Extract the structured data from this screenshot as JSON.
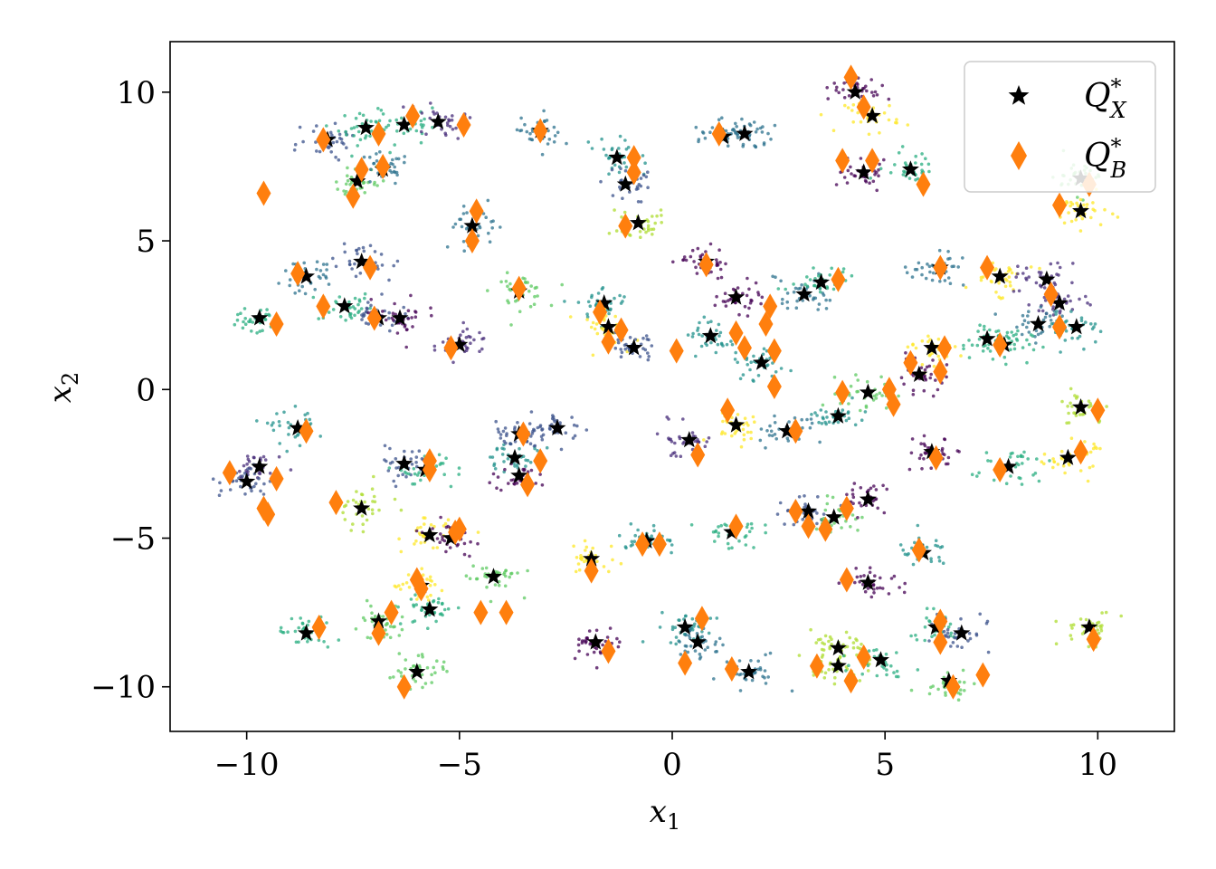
{
  "chart_data": {
    "type": "scatter",
    "title": "",
    "xlabel": "x",
    "xlabel_sub": "1",
    "ylabel": "x",
    "ylabel_sub": "2",
    "xlim": [
      -11.8,
      11.8
    ],
    "ylim": [
      -11.5,
      11.7
    ],
    "xticks": [
      -10,
      -5,
      0,
      5,
      10
    ],
    "yticks": [
      -10,
      -5,
      0,
      5,
      10
    ],
    "xtick_labels": [
      "−10",
      "−5",
      "0",
      "5",
      "10"
    ],
    "ytick_labels": [
      "−10",
      "−5",
      "0",
      "5",
      "10"
    ],
    "grid": false,
    "legend_position": "top-right",
    "colors": {
      "qx": "#000000",
      "qb": "#ff7f0e"
    },
    "series": [
      {
        "name": "Q*_X",
        "label_main": "Q",
        "label_sup": "*",
        "label_sub": "X",
        "marker": "star",
        "points": [
          [
            -9.7,
            2.4
          ],
          [
            -8.6,
            3.8
          ],
          [
            -7.3,
            4.3
          ],
          [
            -7.7,
            2.8
          ],
          [
            -6.9,
            2.4
          ],
          [
            -6.4,
            2.4
          ],
          [
            -8.1,
            8.4
          ],
          [
            -7.2,
            8.8
          ],
          [
            -6.3,
            8.9
          ],
          [
            -5.5,
            9.0
          ],
          [
            -7.4,
            7.0
          ],
          [
            -6.8,
            7.4
          ],
          [
            -4.7,
            5.5
          ],
          [
            -3.1,
            8.7
          ],
          [
            -5.0,
            1.5
          ],
          [
            -3.6,
            3.3
          ],
          [
            -1.3,
            7.8
          ],
          [
            -1.1,
            6.9
          ],
          [
            -0.8,
            5.6
          ],
          [
            -1.6,
            2.9
          ],
          [
            -1.5,
            2.1
          ],
          [
            -0.9,
            1.4
          ],
          [
            1.2,
            8.5
          ],
          [
            1.7,
            8.6
          ],
          [
            0.8,
            4.3
          ],
          [
            1.5,
            3.1
          ],
          [
            0.9,
            1.8
          ],
          [
            2.1,
            0.9
          ],
          [
            3.1,
            3.2
          ],
          [
            3.5,
            3.6
          ],
          [
            4.3,
            10.0
          ],
          [
            4.7,
            9.2
          ],
          [
            4.5,
            7.3
          ],
          [
            5.6,
            7.4
          ],
          [
            9.6,
            7.1
          ],
          [
            9.6,
            6.0
          ],
          [
            6.3,
            4.1
          ],
          [
            7.7,
            3.8
          ],
          [
            8.8,
            3.7
          ],
          [
            9.1,
            2.9
          ],
          [
            8.6,
            2.2
          ],
          [
            9.5,
            2.1
          ],
          [
            7.4,
            1.7
          ],
          [
            7.8,
            1.5
          ],
          [
            6.1,
            1.4
          ],
          [
            5.8,
            0.5
          ],
          [
            3.9,
            -0.9
          ],
          [
            4.6,
            -0.1
          ],
          [
            2.7,
            -1.4
          ],
          [
            1.5,
            -1.2
          ],
          [
            0.4,
            -1.7
          ],
          [
            -2.7,
            -1.3
          ],
          [
            -3.7,
            -2.3
          ],
          [
            -3.6,
            -2.9
          ],
          [
            -3.6,
            -1.5
          ],
          [
            -6.3,
            -2.5
          ],
          [
            -5.8,
            -2.7
          ],
          [
            -8.8,
            -1.3
          ],
          [
            -9.7,
            -2.6
          ],
          [
            -10.0,
            -3.1
          ],
          [
            -7.3,
            -4.0
          ],
          [
            -5.7,
            -4.9
          ],
          [
            -5.2,
            -5.0
          ],
          [
            -4.2,
            -6.3
          ],
          [
            -5.9,
            -6.6
          ],
          [
            -5.7,
            -7.4
          ],
          [
            -6.9,
            -7.8
          ],
          [
            -8.6,
            -8.2
          ],
          [
            -6.0,
            -9.5
          ],
          [
            -1.9,
            -5.7
          ],
          [
            -0.6,
            -5.1
          ],
          [
            -1.8,
            -8.5
          ],
          [
            0.3,
            -8.0
          ],
          [
            0.6,
            -8.5
          ],
          [
            1.8,
            -9.5
          ],
          [
            1.4,
            -4.8
          ],
          [
            3.2,
            -4.1
          ],
          [
            3.8,
            -4.3
          ],
          [
            4.6,
            -3.7
          ],
          [
            3.9,
            -8.7
          ],
          [
            3.9,
            -9.3
          ],
          [
            4.9,
            -9.1
          ],
          [
            4.6,
            -6.5
          ],
          [
            5.9,
            -5.5
          ],
          [
            6.1,
            -2.1
          ],
          [
            6.2,
            -8.0
          ],
          [
            6.8,
            -8.2
          ],
          [
            6.5,
            -9.8
          ],
          [
            7.9,
            -2.6
          ],
          [
            9.3,
            -2.3
          ],
          [
            9.6,
            -0.6
          ],
          [
            9.8,
            -8.0
          ]
        ]
      },
      {
        "name": "Q*_B",
        "label_main": "Q",
        "label_sup": "*",
        "label_sub": "B",
        "marker": "diamond",
        "points": [
          [
            -9.3,
            2.2
          ],
          [
            -8.8,
            3.9
          ],
          [
            -7.1,
            4.1
          ],
          [
            -8.2,
            2.8
          ],
          [
            -7.0,
            2.4
          ],
          [
            -8.2,
            8.4
          ],
          [
            -6.9,
            8.6
          ],
          [
            -6.1,
            9.2
          ],
          [
            -4.9,
            8.9
          ],
          [
            -7.3,
            7.4
          ],
          [
            -7.5,
            6.5
          ],
          [
            -6.8,
            7.5
          ],
          [
            -9.6,
            6.6
          ],
          [
            -4.6,
            6.0
          ],
          [
            -4.7,
            5.0
          ],
          [
            -3.1,
            8.7
          ],
          [
            -5.2,
            1.4
          ],
          [
            -3.6,
            3.4
          ],
          [
            -0.9,
            7.8
          ],
          [
            -0.9,
            7.3
          ],
          [
            -1.1,
            5.5
          ],
          [
            -1.7,
            2.6
          ],
          [
            -1.2,
            2.0
          ],
          [
            -1.5,
            1.6
          ],
          [
            1.1,
            8.6
          ],
          [
            0.8,
            4.2
          ],
          [
            0.1,
            1.3
          ],
          [
            1.5,
            1.9
          ],
          [
            1.7,
            1.4
          ],
          [
            2.2,
            2.2
          ],
          [
            2.3,
            2.8
          ],
          [
            2.4,
            1.3
          ],
          [
            2.4,
            0.1
          ],
          [
            3.9,
            3.7
          ],
          [
            4.2,
            10.5
          ],
          [
            4.5,
            9.5
          ],
          [
            4.0,
            7.7
          ],
          [
            4.7,
            7.7
          ],
          [
            5.9,
            6.9
          ],
          [
            9.1,
            6.2
          ],
          [
            9.8,
            6.9
          ],
          [
            6.3,
            4.1
          ],
          [
            7.4,
            4.1
          ],
          [
            8.9,
            3.2
          ],
          [
            9.1,
            2.1
          ],
          [
            7.7,
            1.5
          ],
          [
            6.4,
            1.4
          ],
          [
            5.6,
            0.9
          ],
          [
            6.3,
            0.6
          ],
          [
            4.0,
            -0.1
          ],
          [
            5.1,
            0.0
          ],
          [
            5.2,
            -0.5
          ],
          [
            2.9,
            -1.4
          ],
          [
            1.3,
            -0.7
          ],
          [
            0.6,
            -2.2
          ],
          [
            -3.5,
            -1.5
          ],
          [
            -3.1,
            -2.4
          ],
          [
            -3.4,
            -3.2
          ],
          [
            -5.7,
            -2.4
          ],
          [
            -5.7,
            -2.7
          ],
          [
            -8.6,
            -1.4
          ],
          [
            -10.4,
            -2.8
          ],
          [
            -9.3,
            -3.0
          ],
          [
            -9.6,
            -4.0
          ],
          [
            -9.5,
            -4.2
          ],
          [
            -7.9,
            -3.8
          ],
          [
            -5.1,
            -4.8
          ],
          [
            -5.0,
            -4.7
          ],
          [
            -6.0,
            -6.4
          ],
          [
            -5.9,
            -6.7
          ],
          [
            -6.6,
            -7.5
          ],
          [
            -6.9,
            -8.2
          ],
          [
            -4.5,
            -7.5
          ],
          [
            -3.9,
            -7.5
          ],
          [
            -8.3,
            -8.0
          ],
          [
            -6.3,
            -10.0
          ],
          [
            -1.9,
            -6.1
          ],
          [
            -0.7,
            -5.2
          ],
          [
            -0.3,
            -5.2
          ],
          [
            -1.5,
            -8.8
          ],
          [
            0.3,
            -9.2
          ],
          [
            0.7,
            -7.7
          ],
          [
            1.4,
            -9.4
          ],
          [
            1.5,
            -4.6
          ],
          [
            2.9,
            -4.1
          ],
          [
            3.2,
            -4.6
          ],
          [
            3.6,
            -4.7
          ],
          [
            4.1,
            -4.0
          ],
          [
            4.1,
            -6.4
          ],
          [
            3.4,
            -9.3
          ],
          [
            4.2,
            -9.8
          ],
          [
            4.5,
            -9.0
          ],
          [
            5.8,
            -5.4
          ],
          [
            6.2,
            -2.3
          ],
          [
            6.3,
            -7.8
          ],
          [
            6.3,
            -8.5
          ],
          [
            6.6,
            -10.0
          ],
          [
            7.3,
            -9.6
          ],
          [
            7.7,
            -2.7
          ],
          [
            9.6,
            -2.1
          ],
          [
            10.0,
            -0.7
          ],
          [
            9.9,
            -8.4
          ]
        ]
      }
    ]
  }
}
